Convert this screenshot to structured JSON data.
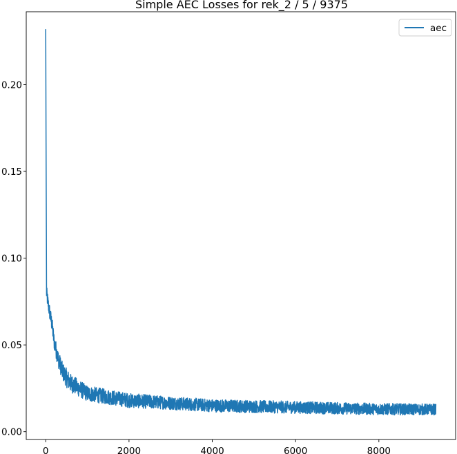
{
  "chart_data": {
    "type": "line",
    "title": "Simple AEC Losses for rek_2 / 5 / 9375",
    "xlabel": "",
    "ylabel": "",
    "xlim": [
      -468,
      9843
    ],
    "ylim": [
      -0.0045,
      0.242
    ],
    "xticks": [
      0,
      2000,
      4000,
      6000,
      8000
    ],
    "xtick_labels": [
      "0",
      "2000",
      "4000",
      "6000",
      "8000"
    ],
    "yticks": [
      0.0,
      0.05,
      0.1,
      0.15,
      0.2
    ],
    "ytick_labels": [
      "0.00",
      "0.05",
      "0.10",
      "0.15",
      "0.20"
    ],
    "grid": false,
    "legend": {
      "placement": "top-right",
      "entries": [
        "aec"
      ]
    },
    "series": [
      {
        "name": "aec",
        "color": "#1f77b4",
        "x_range": [
          0,
          9375
        ],
        "trend": [
          [
            0,
            0.232
          ],
          [
            10,
            0.15
          ],
          [
            20,
            0.08
          ],
          [
            50,
            0.075
          ],
          [
            100,
            0.068
          ],
          [
            150,
            0.062
          ],
          [
            200,
            0.052
          ],
          [
            300,
            0.042
          ],
          [
            400,
            0.035
          ],
          [
            500,
            0.031
          ],
          [
            600,
            0.028
          ],
          [
            800,
            0.025
          ],
          [
            1000,
            0.022
          ],
          [
            1500,
            0.02
          ],
          [
            2000,
            0.018
          ],
          [
            3000,
            0.0165
          ],
          [
            4000,
            0.015
          ],
          [
            5000,
            0.0145
          ],
          [
            6000,
            0.014
          ],
          [
            7000,
            0.0135
          ],
          [
            8000,
            0.013
          ],
          [
            9375,
            0.0128
          ]
        ],
        "noise_band": [
          [
            0,
            0.004
          ],
          [
            500,
            0.0055
          ],
          [
            1000,
            0.0045
          ],
          [
            3000,
            0.0038
          ],
          [
            9375,
            0.0032
          ]
        ]
      }
    ]
  }
}
